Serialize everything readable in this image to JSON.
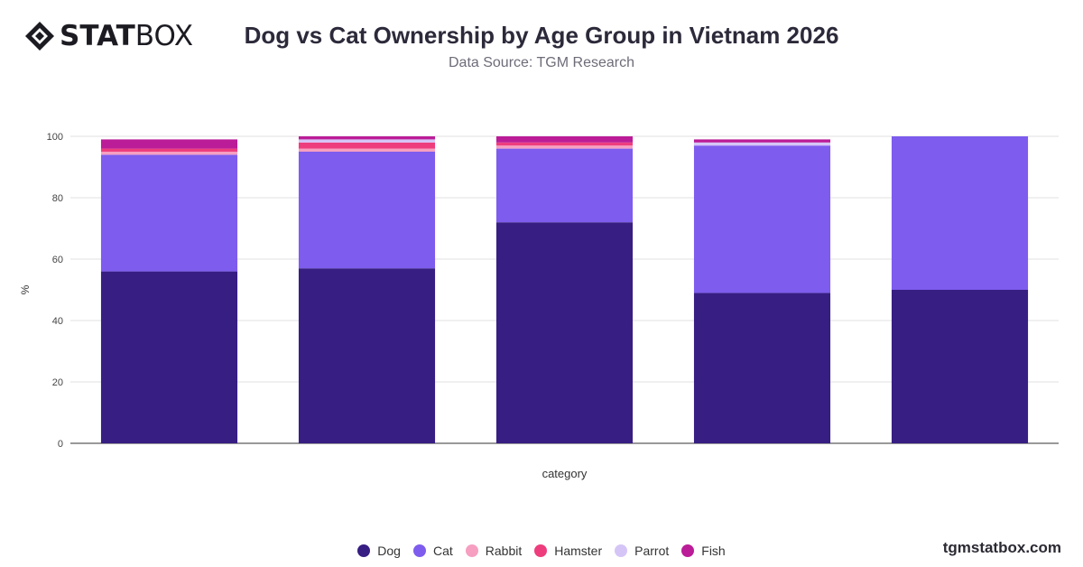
{
  "brand": {
    "logo_bold": "STAT",
    "logo_light": "BOX"
  },
  "header": {
    "title": "Dog vs Cat Ownership by Age Group in Vietnam 2026",
    "subtitle": "Data Source: TGM Research"
  },
  "footer": {
    "site": "tgmstatbox.com"
  },
  "colors": {
    "Dog": "#371e83",
    "Cat": "#7d5cee",
    "Rabbit": "#f69fc1",
    "Hamster": "#ee3d7d",
    "Parrot": "#d5c5f7",
    "Fish": "#bb1c97"
  },
  "chart_data": {
    "type": "bar",
    "stacked": true,
    "categories": [
      "",
      "",
      "",
      "",
      ""
    ],
    "series": [
      {
        "name": "Dog",
        "values": [
          56,
          57,
          72,
          49,
          50
        ]
      },
      {
        "name": "Cat",
        "values": [
          38,
          38,
          24,
          48,
          50
        ]
      },
      {
        "name": "Rabbit",
        "values": [
          1,
          1,
          1,
          0,
          0
        ]
      },
      {
        "name": "Hamster",
        "values": [
          1,
          2,
          1,
          0,
          0
        ]
      },
      {
        "name": "Parrot",
        "values": [
          0,
          1,
          0,
          1,
          0
        ]
      },
      {
        "name": "Fish",
        "values": [
          3,
          1,
          2,
          1,
          0
        ]
      }
    ],
    "xlabel": "category",
    "ylabel": "%",
    "ylim": [
      0,
      100
    ],
    "yticks": [
      0,
      20,
      40,
      60,
      80,
      100
    ],
    "grid": true,
    "legend_position": "bottom"
  }
}
